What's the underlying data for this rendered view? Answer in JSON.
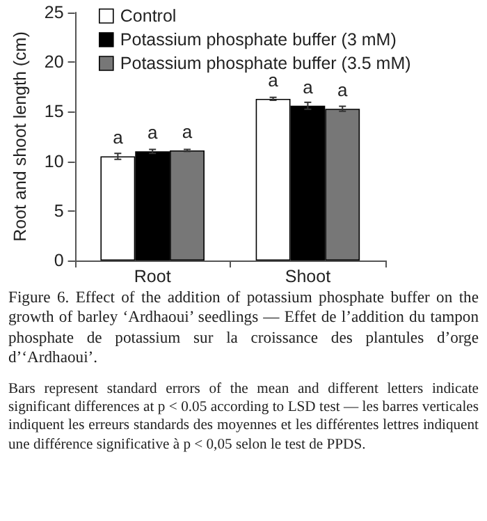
{
  "chart_data": {
    "type": "bar",
    "ylabel": "Root and shoot length (cm)",
    "categories": [
      "Root",
      "Shoot"
    ],
    "ylim": [
      0,
      25
    ],
    "yticks": [
      0,
      5,
      10,
      15,
      20,
      25
    ],
    "grid": false,
    "legend": "top",
    "series": [
      {
        "name": "Control",
        "color": "#ffffff",
        "values": [
          10.5,
          16.3
        ],
        "errors": [
          0.3,
          0.15
        ],
        "value_labels": [
          "a",
          "a"
        ]
      },
      {
        "name": "Potassium phosphate buffer (3 mM)",
        "color": "#000000",
        "values": [
          11.0,
          15.6
        ],
        "errors": [
          0.2,
          0.35
        ],
        "value_labels": [
          "a",
          "a"
        ]
      },
      {
        "name": "Potassium phosphate buffer (3.5 mM)",
        "color": "#777777",
        "values": [
          11.1,
          15.3
        ],
        "errors": [
          0.1,
          0.25
        ],
        "value_labels": [
          "a",
          "a"
        ]
      }
    ],
    "annotations": [
      "Figure 6. Effect of the addition of potassium phosphate buffer on the growth of barley ‘Ardhaoui’ seedlings — Effet de l’addition du tampon phosphate de potassium sur la croissance des plantules d’orge d’‘Ardhaoui’.",
      "Bars represent standard errors of the mean and different letters indicate significant differences at p < 0.05 according to LSD test — les barres verticales indiquent les erreurs standards des moyennes et les différentes lettres indiquent une différence significative à p < 0,05 selon le test de PPDS."
    ]
  }
}
